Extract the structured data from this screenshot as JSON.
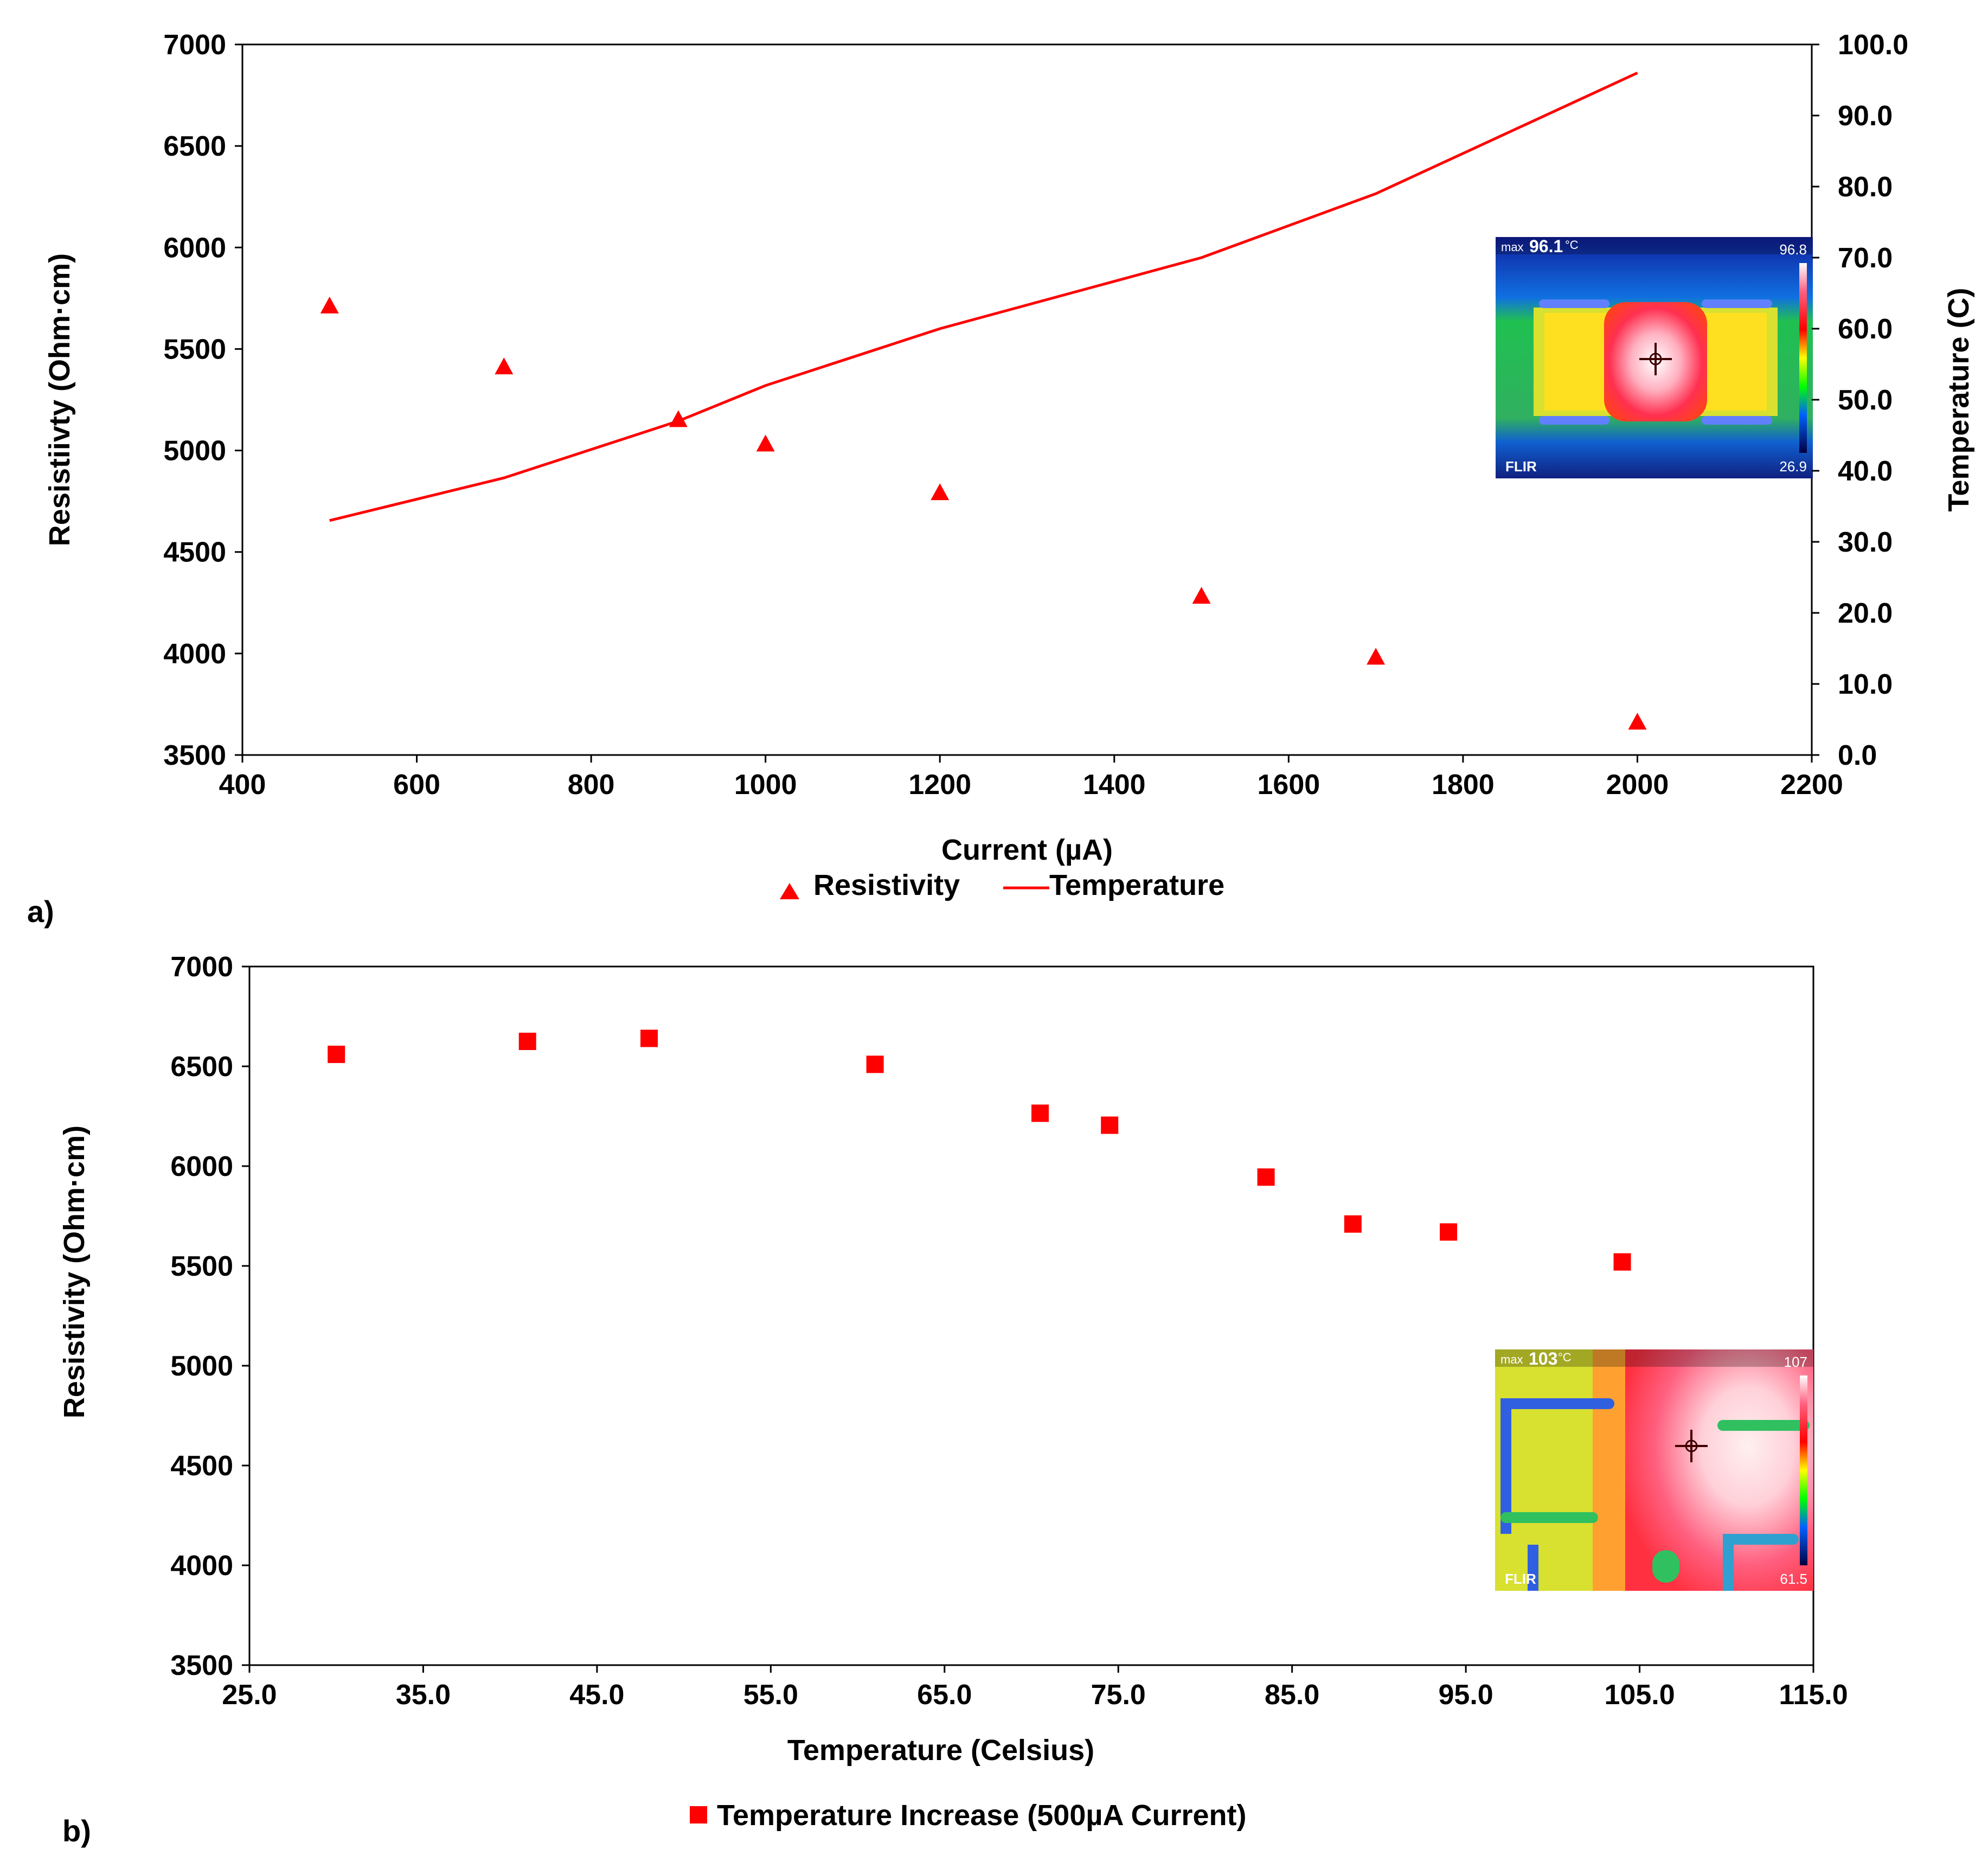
{
  "colors": {
    "series": "#ff0000",
    "axis": "#000000",
    "background": "#ffffff"
  },
  "chart_data": [
    {
      "panel_label": "a)",
      "type": "scatter",
      "title": "",
      "xlabel": "Current (µA)",
      "ylabel": "Resistiivty (Ohm·cm)",
      "y2label": "Temperature (C)",
      "xlim": [
        400,
        2200
      ],
      "ylim": [
        3500,
        7000
      ],
      "y2lim": [
        0,
        100
      ],
      "xticks": [
        "400",
        "600",
        "800",
        "1000",
        "1200",
        "1400",
        "1600",
        "1800",
        "2000",
        "2200"
      ],
      "yticks": [
        "3500",
        "4000",
        "4500",
        "5000",
        "5500",
        "6000",
        "6500",
        "7000"
      ],
      "y2ticks": [
        "0.0",
        "10.0",
        "20.0",
        "30.0",
        "40.0",
        "50.0",
        "60.0",
        "70.0",
        "80.0",
        "90.0",
        "100.0"
      ],
      "grid": false,
      "legend_position": "bottom-center",
      "series": [
        {
          "name": "Resistivity",
          "type": "scatter",
          "marker": "triangle",
          "axis": "left",
          "x": [
            500,
            700,
            900,
            1000,
            1200,
            1500,
            1700,
            2000
          ],
          "y": [
            5710,
            5410,
            5150,
            5030,
            4790,
            4280,
            3980,
            3660
          ]
        },
        {
          "name": "Temperature",
          "type": "line",
          "axis": "right",
          "x": [
            500,
            700,
            900,
            1000,
            1200,
            1500,
            1700,
            2000
          ],
          "y": [
            33,
            39,
            47,
            52,
            60,
            70,
            79,
            96
          ]
        }
      ],
      "thermal_inset": {
        "max_prefix": "max",
        "max_value": "96.1",
        "unit": "°C",
        "scale_high": "96.8",
        "scale_low": "26.9",
        "brand": "FLIR"
      }
    },
    {
      "panel_label": "b)",
      "type": "scatter",
      "title": "",
      "xlabel": "Temperature (Celsius)",
      "ylabel": "Resistivity (Ohm·cm)",
      "xlim": [
        25,
        115
      ],
      "ylim": [
        3500,
        7000
      ],
      "xticks": [
        "25.0",
        "35.0",
        "45.0",
        "55.0",
        "65.0",
        "75.0",
        "85.0",
        "95.0",
        "105.0",
        "115.0"
      ],
      "yticks": [
        "3500",
        "4000",
        "4500",
        "5000",
        "5500",
        "6000",
        "6500",
        "7000"
      ],
      "grid": false,
      "legend_position": "bottom-center",
      "series": [
        {
          "name": "Temperature Increase (500µA Current)",
          "type": "scatter",
          "marker": "square",
          "axis": "left",
          "x": [
            30.0,
            41.0,
            48.0,
            61.0,
            70.5,
            74.5,
            83.5,
            88.5,
            94.0,
            104.0
          ],
          "y": [
            6560,
            6625,
            6640,
            6510,
            6265,
            6205,
            5945,
            5710,
            5670,
            5520
          ]
        }
      ],
      "thermal_inset": {
        "max_prefix": "max",
        "max_value": "103",
        "unit": "°C",
        "scale_high": "107",
        "scale_low": "61.5",
        "brand": "FLIR"
      }
    }
  ]
}
